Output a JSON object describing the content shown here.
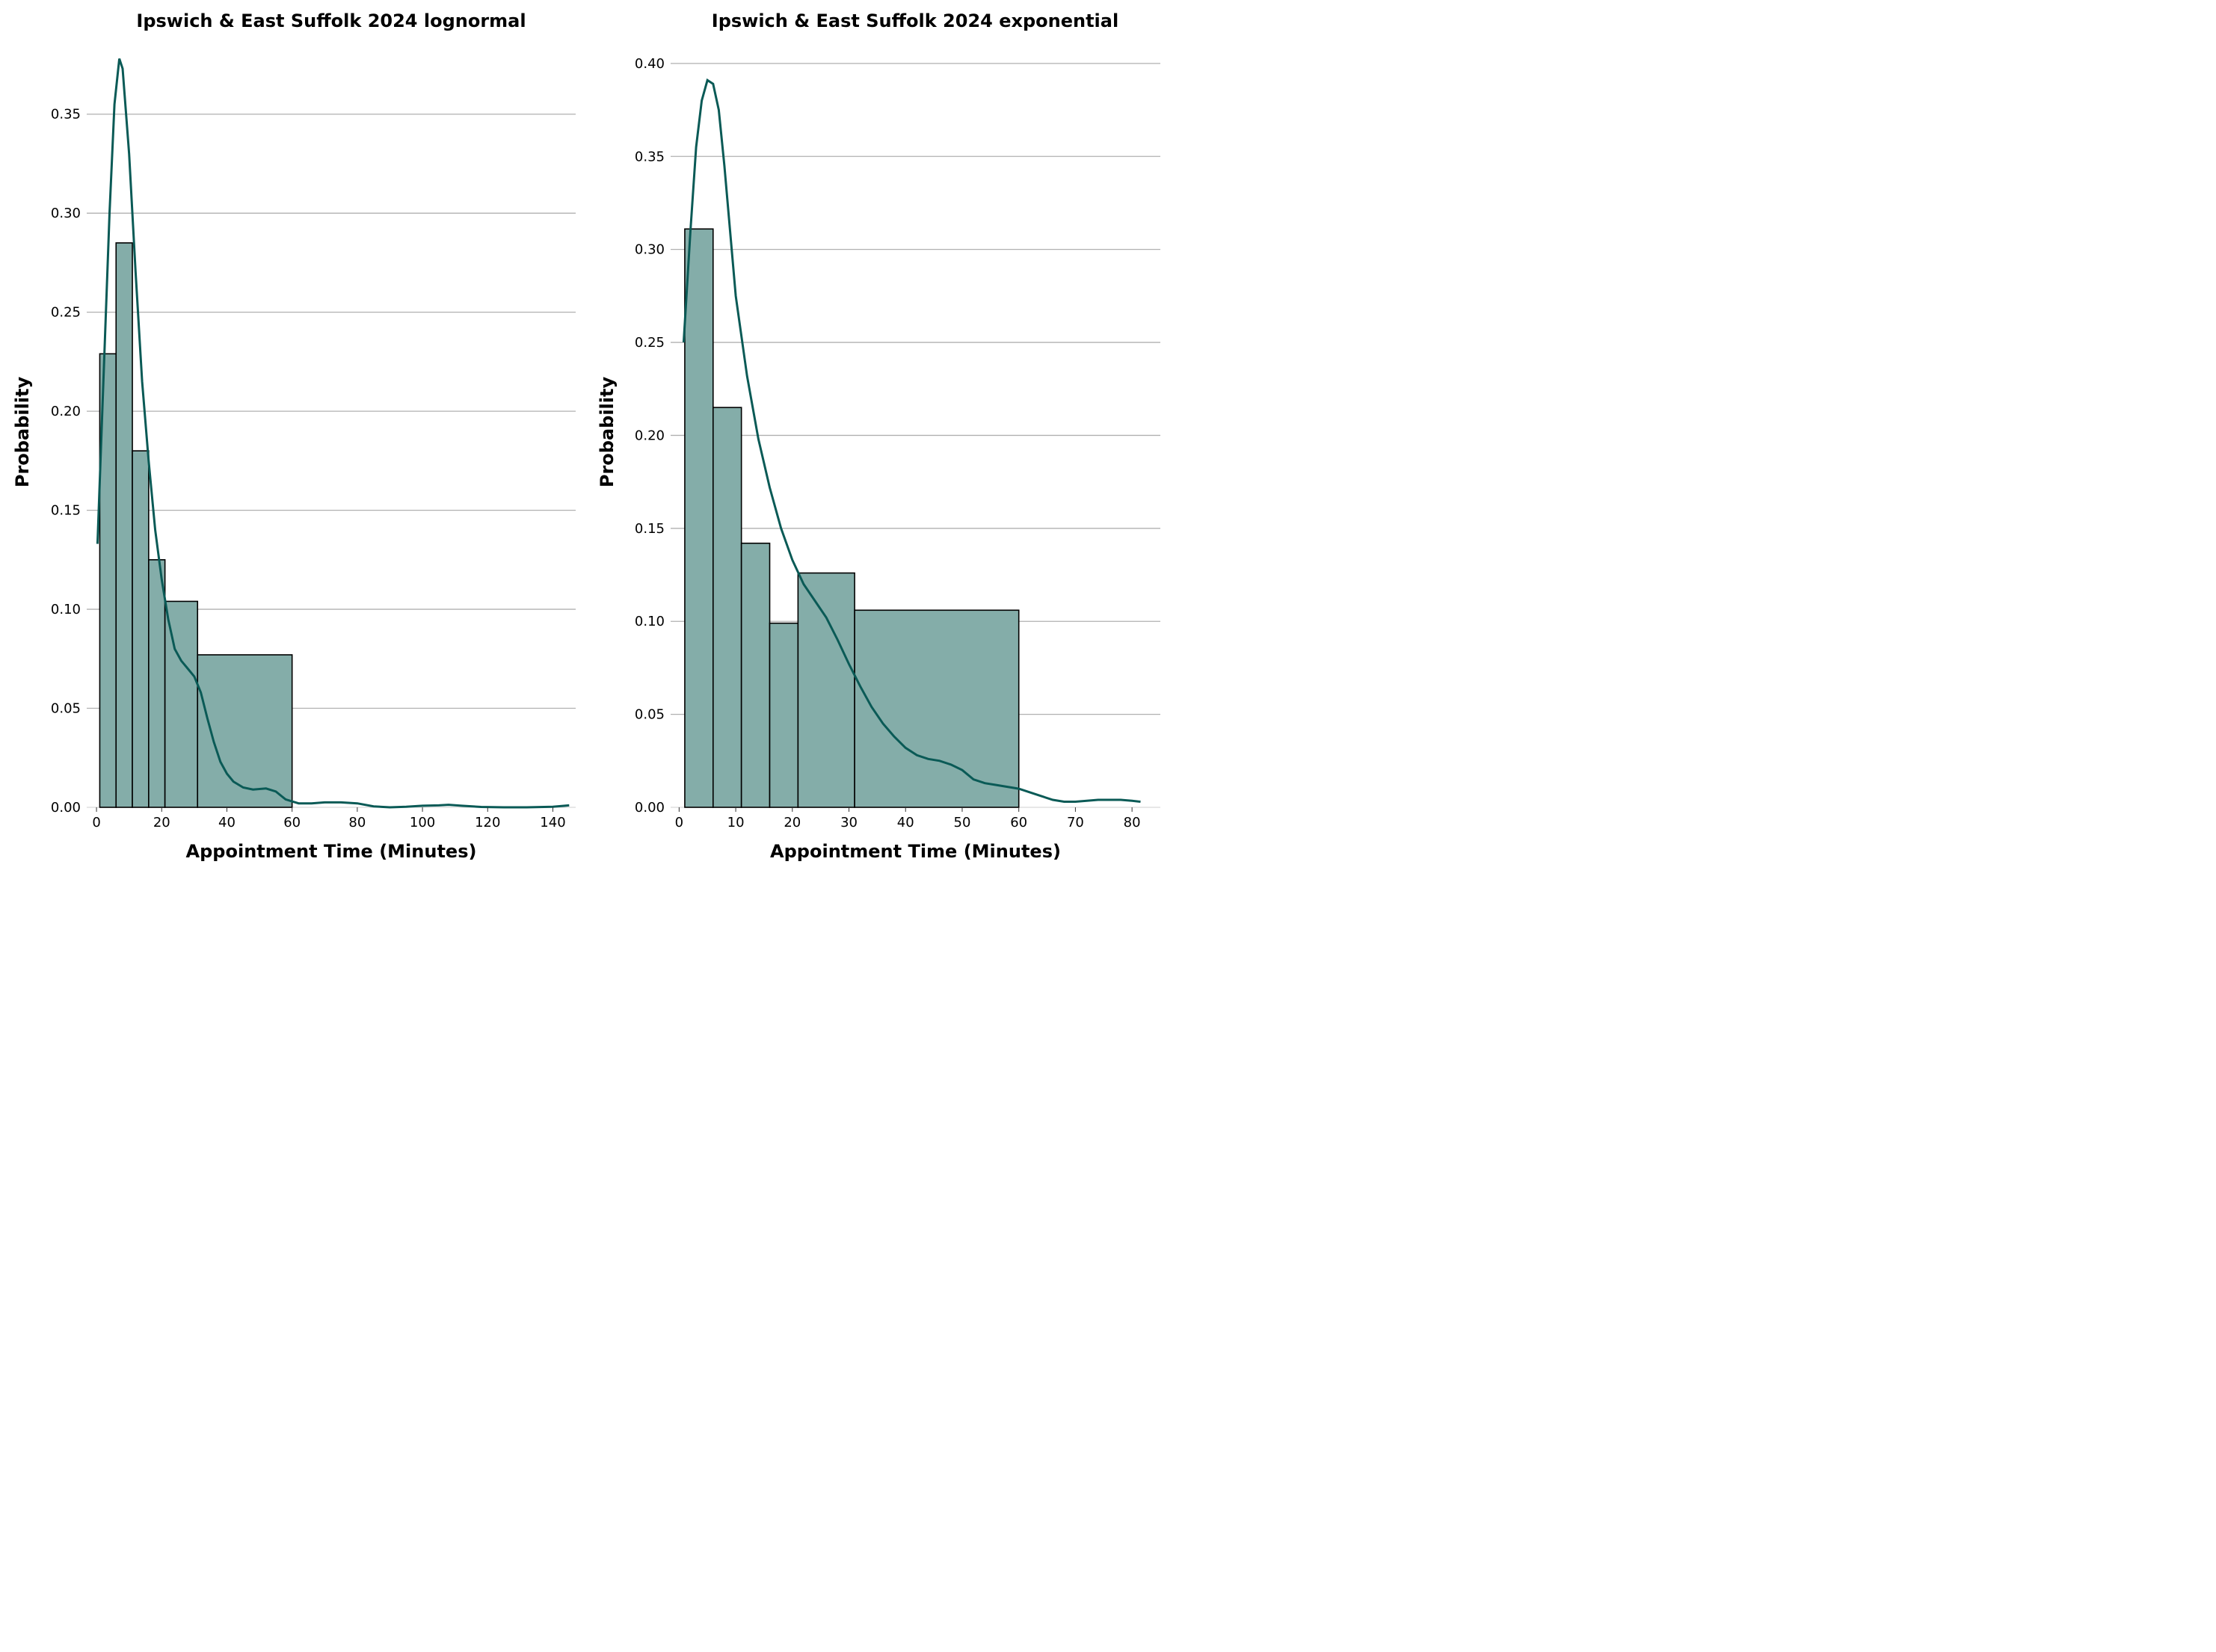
{
  "chart_data": [
    {
      "type": "bar",
      "title": "Ipswich & East Suffolk 2024 lognormal",
      "xlabel": "Appointment Time (Minutes)",
      "ylabel": "Probability",
      "xlim": [
        -3,
        147
      ],
      "ylim": [
        0,
        0.385
      ],
      "xticks": [
        0,
        20,
        40,
        60,
        80,
        100,
        120,
        140
      ],
      "yticks": [
        0.0,
        0.05,
        0.1,
        0.15,
        0.2,
        0.25,
        0.3,
        0.35
      ],
      "ytick_labels": [
        "0.00",
        "0.05",
        "0.10",
        "0.15",
        "0.20",
        "0.25",
        "0.30",
        "0.35"
      ],
      "grid": "y",
      "bins": [
        {
          "x0": 1,
          "x1": 6,
          "value": 0.229
        },
        {
          "x0": 6,
          "x1": 11,
          "value": 0.285
        },
        {
          "x0": 11,
          "x1": 16,
          "value": 0.18
        },
        {
          "x0": 16,
          "x1": 21,
          "value": 0.125
        },
        {
          "x0": 21,
          "x1": 31,
          "value": 0.104
        },
        {
          "x0": 31,
          "x1": 60,
          "value": 0.077
        }
      ],
      "kde": [
        [
          0.3,
          0.133
        ],
        [
          2,
          0.21
        ],
        [
          4,
          0.3
        ],
        [
          5.5,
          0.355
        ],
        [
          7,
          0.378
        ],
        [
          8,
          0.373
        ],
        [
          10,
          0.33
        ],
        [
          12,
          0.27
        ],
        [
          14,
          0.215
        ],
        [
          16,
          0.175
        ],
        [
          18,
          0.14
        ],
        [
          20,
          0.115
        ],
        [
          22,
          0.095
        ],
        [
          24,
          0.08
        ],
        [
          26,
          0.074
        ],
        [
          28,
          0.07
        ],
        [
          30,
          0.066
        ],
        [
          32,
          0.058
        ],
        [
          34,
          0.045
        ],
        [
          36,
          0.033
        ],
        [
          38,
          0.023
        ],
        [
          40,
          0.017
        ],
        [
          42,
          0.013
        ],
        [
          45,
          0.01
        ],
        [
          48,
          0.009
        ],
        [
          52,
          0.0095
        ],
        [
          55,
          0.008
        ],
        [
          58,
          0.004
        ],
        [
          62,
          0.002
        ],
        [
          66,
          0.002
        ],
        [
          70,
          0.0025
        ],
        [
          75,
          0.0025
        ],
        [
          80,
          0.002
        ],
        [
          85,
          0.0005
        ],
        [
          90,
          0.0
        ],
        [
          95,
          0.0003
        ],
        [
          100,
          0.0008
        ],
        [
          105,
          0.001
        ],
        [
          108,
          0.0013
        ],
        [
          112,
          0.0008
        ],
        [
          118,
          0.0002
        ],
        [
          125,
          0.0
        ],
        [
          132,
          0.0
        ],
        [
          140,
          0.0003
        ],
        [
          145,
          0.001
        ]
      ]
    },
    {
      "type": "bar",
      "title": "Ipswich & East Suffolk 2024 exponential",
      "xlabel": "Appointment Time (Minutes)",
      "ylabel": "Probability",
      "xlim": [
        -1.5,
        85
      ],
      "ylim": [
        0,
        0.41
      ],
      "xticks": [
        0,
        10,
        20,
        30,
        40,
        50,
        60,
        70,
        80
      ],
      "yticks": [
        0.0,
        0.05,
        0.1,
        0.15,
        0.2,
        0.25,
        0.3,
        0.35,
        0.4
      ],
      "ytick_labels": [
        "0.00",
        "0.05",
        "0.10",
        "0.15",
        "0.20",
        "0.25",
        "0.30",
        "0.35",
        "0.40"
      ],
      "grid": "y",
      "bins": [
        {
          "x0": 1,
          "x1": 6,
          "value": 0.311
        },
        {
          "x0": 6,
          "x1": 11,
          "value": 0.215
        },
        {
          "x0": 11,
          "x1": 16,
          "value": 0.142
        },
        {
          "x0": 16,
          "x1": 21,
          "value": 0.099
        },
        {
          "x0": 21,
          "x1": 31,
          "value": 0.126
        },
        {
          "x0": 31,
          "x1": 60,
          "value": 0.106
        }
      ],
      "kde": [
        [
          0.8,
          0.25
        ],
        [
          2,
          0.31
        ],
        [
          3,
          0.355
        ],
        [
          4,
          0.38
        ],
        [
          5,
          0.391
        ],
        [
          6,
          0.389
        ],
        [
          7,
          0.375
        ],
        [
          8,
          0.345
        ],
        [
          9,
          0.31
        ],
        [
          10,
          0.275
        ],
        [
          12,
          0.232
        ],
        [
          14,
          0.198
        ],
        [
          16,
          0.172
        ],
        [
          18,
          0.15
        ],
        [
          20,
          0.133
        ],
        [
          22,
          0.12
        ],
        [
          24,
          0.111
        ],
        [
          26,
          0.102
        ],
        [
          28,
          0.09
        ],
        [
          30,
          0.077
        ],
        [
          32,
          0.065
        ],
        [
          34,
          0.054
        ],
        [
          36,
          0.045
        ],
        [
          38,
          0.038
        ],
        [
          40,
          0.032
        ],
        [
          42,
          0.028
        ],
        [
          44,
          0.026
        ],
        [
          46,
          0.025
        ],
        [
          48,
          0.023
        ],
        [
          50,
          0.02
        ],
        [
          52,
          0.015
        ],
        [
          54,
          0.013
        ],
        [
          56,
          0.012
        ],
        [
          58,
          0.011
        ],
        [
          60,
          0.01
        ],
        [
          62,
          0.008
        ],
        [
          64,
          0.006
        ],
        [
          66,
          0.004
        ],
        [
          68,
          0.003
        ],
        [
          70,
          0.003
        ],
        [
          72,
          0.0035
        ],
        [
          74,
          0.004
        ],
        [
          76,
          0.004
        ],
        [
          78,
          0.004
        ],
        [
          80,
          0.0035
        ],
        [
          81.5,
          0.003
        ]
      ]
    }
  ]
}
